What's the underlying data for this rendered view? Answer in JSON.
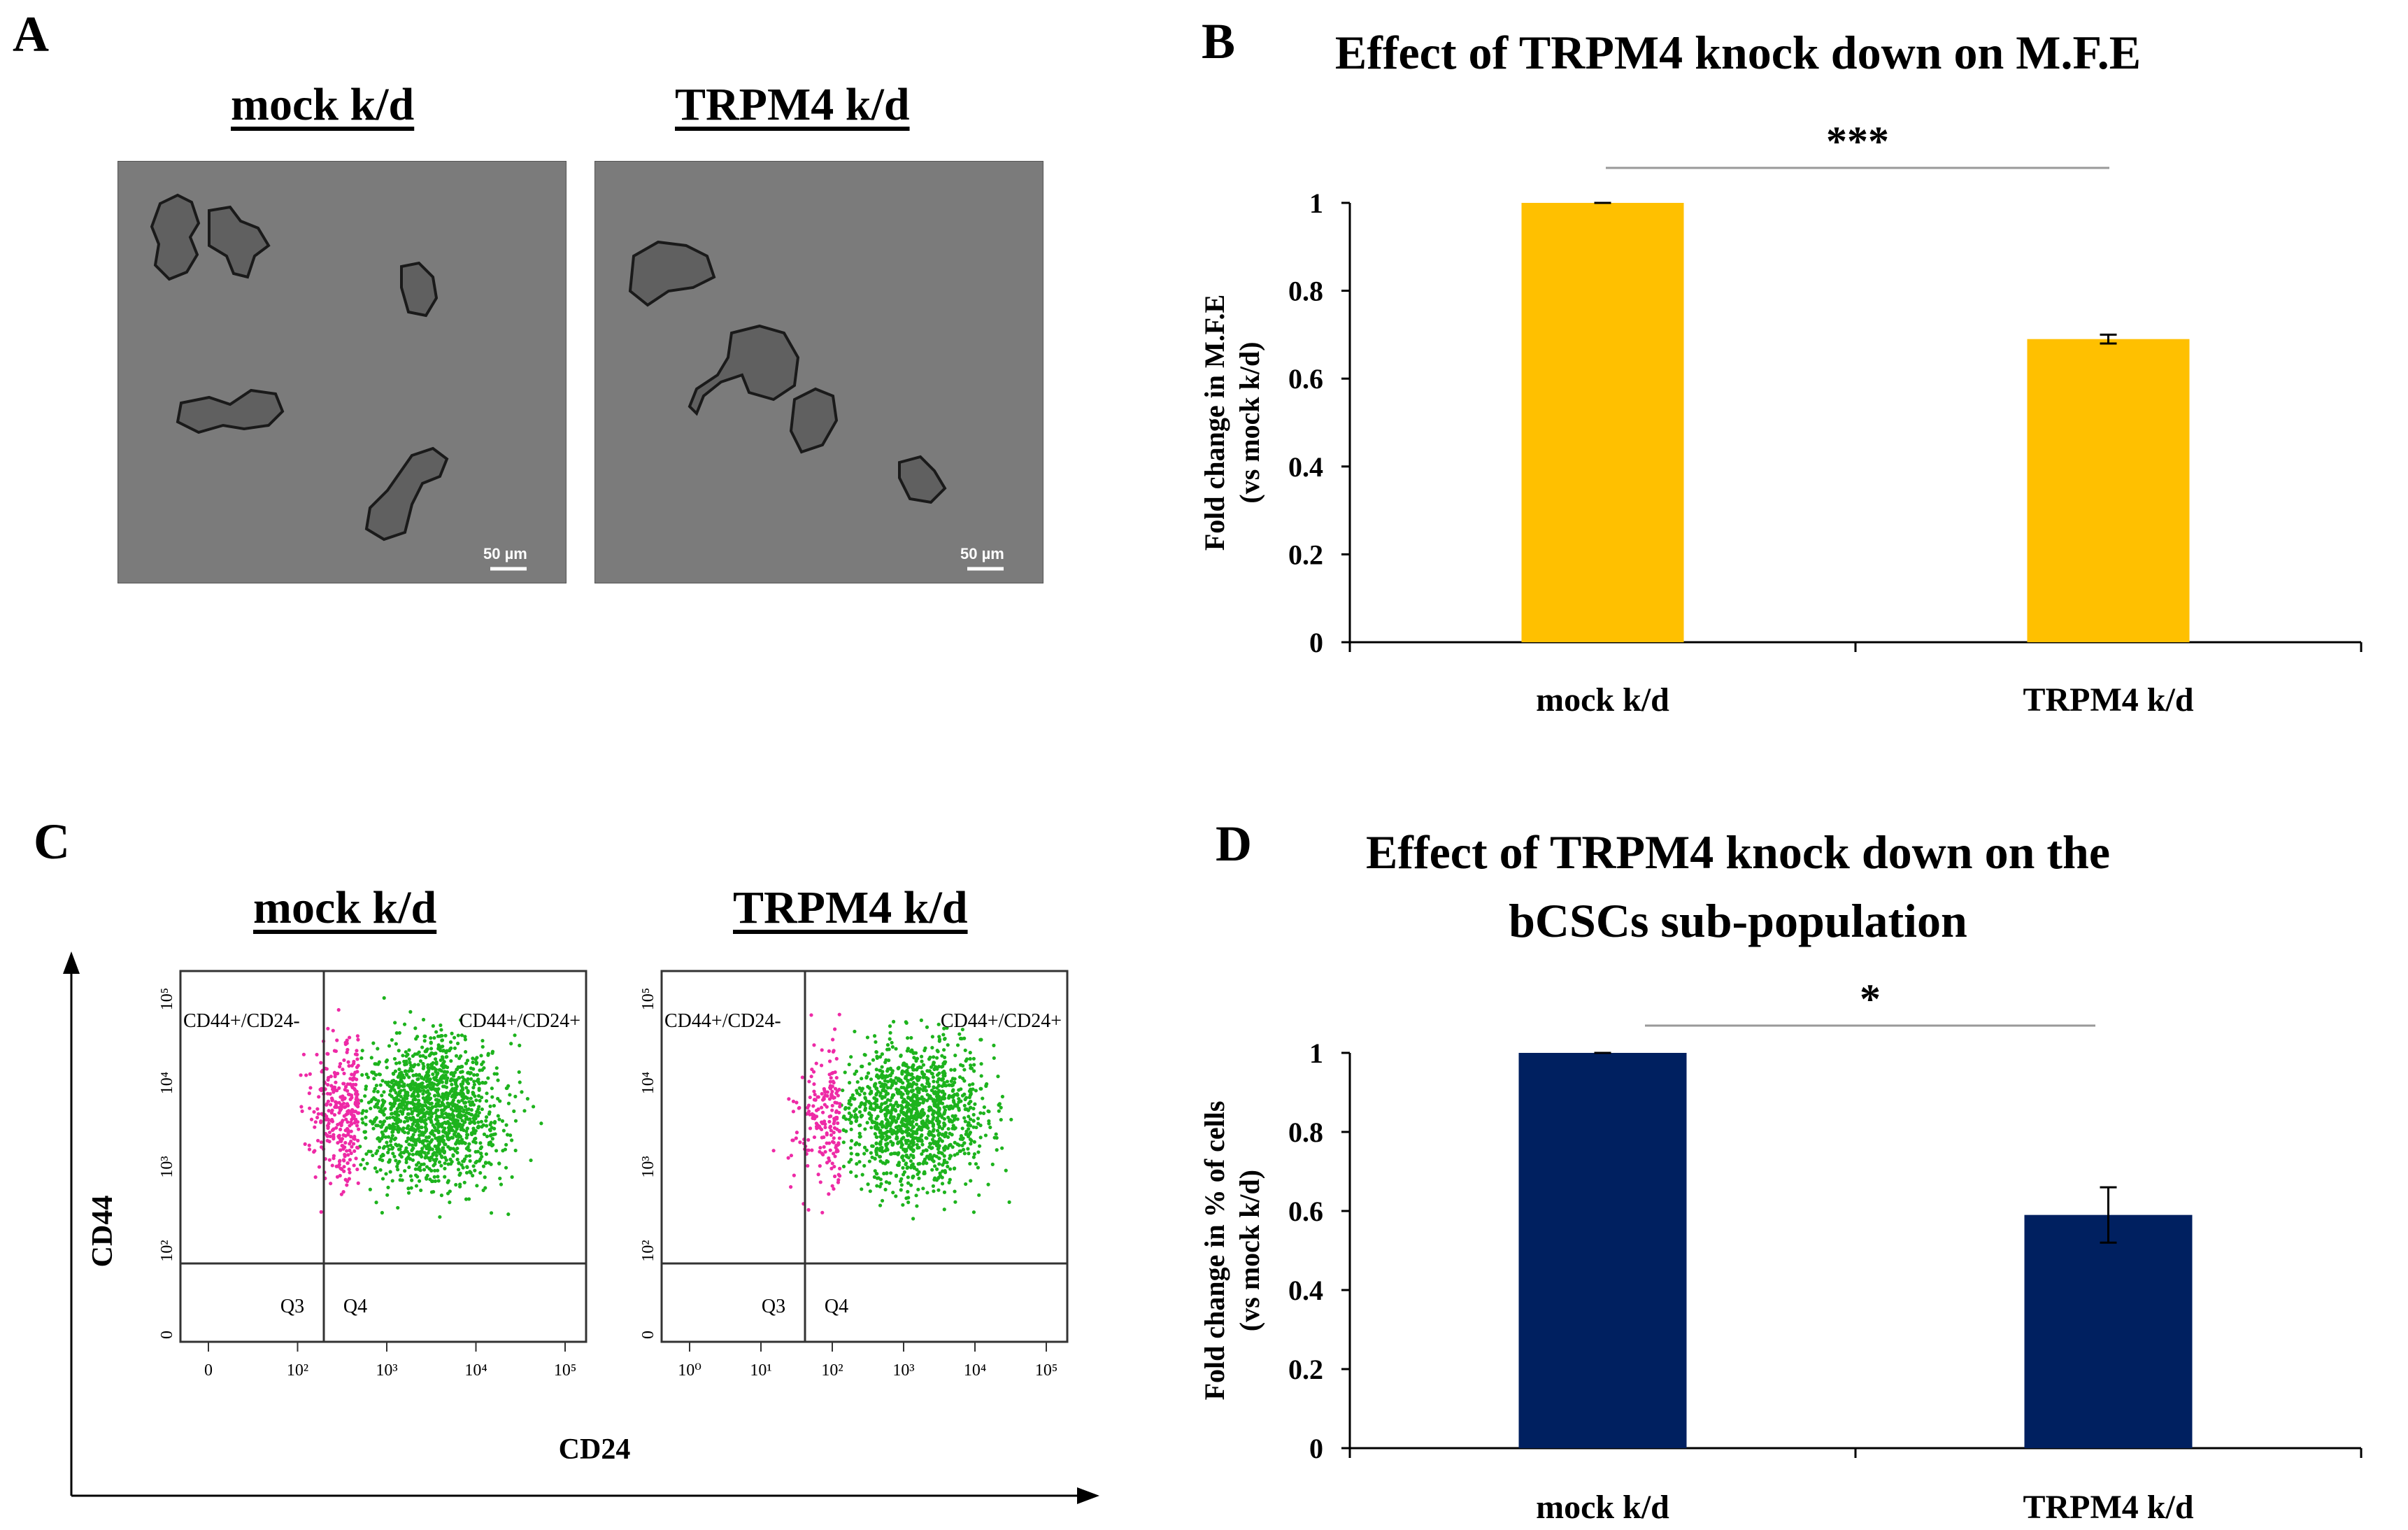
{
  "panels": {
    "a": {
      "letter": "A",
      "left_title": "mock k/d",
      "right_title": "TRPM4 k/d",
      "scale_bar": "50 µm"
    },
    "b": {
      "letter": "B"
    },
    "c": {
      "letter": "C",
      "left_title": "mock k/d",
      "right_title": "TRPM4 k/d",
      "y_axis_label": "CD44",
      "x_axis_label": "CD24",
      "quadrant_ul": "CD44+/CD24-",
      "quadrant_ur": "CD44+/CD24+",
      "quadrant_ll": "Q3",
      "quadrant_lr": "Q4",
      "y_ticks": [
        "10⁵",
        "10⁴",
        "10³",
        "10²",
        "0"
      ],
      "x_ticks_left": [
        "0",
        "10²",
        "10³",
        "10⁴",
        "10⁵"
      ],
      "x_ticks_right": [
        "10⁰",
        "10¹",
        "10²",
        "10³",
        "10⁴",
        "10⁵"
      ],
      "colors": {
        "negative": "#ee2aa6",
        "positive": "#1db31d"
      }
    },
    "d": {
      "letter": "D"
    }
  },
  "chart_data": [
    {
      "type": "bar",
      "panel": "B",
      "title": "Effect of TRPM4 knock down on M.F.E",
      "categories": [
        "mock k/d",
        "TRPM4 k/d"
      ],
      "values": [
        1.0,
        0.69
      ],
      "errors": [
        0.0,
        0.01
      ],
      "ylabel_line1": "Fold change in M.F.E",
      "ylabel_line2": "(vs mock k/d)",
      "ylim": [
        0,
        1
      ],
      "yticks": [
        0,
        0.2,
        0.4,
        0.6,
        0.8,
        1
      ],
      "ytick_labels": [
        "0",
        "0.2",
        "0.4",
        "0.6",
        "0.8",
        "1"
      ],
      "significance": "***",
      "color": "#ffc000"
    },
    {
      "type": "bar",
      "panel": "D",
      "title_line1": "Effect of TRPM4 knock down on the",
      "title_line2": "bCSCs sub-population",
      "categories": [
        "mock k/d",
        "TRPM4 k/d"
      ],
      "values": [
        1.0,
        0.59
      ],
      "errors": [
        0.0,
        0.07
      ],
      "ylabel_line1": "Fold change in % of cells",
      "ylabel_line2": "(vs mock k/d)",
      "ylim": [
        0,
        1
      ],
      "yticks": [
        0,
        0.2,
        0.4,
        0.6,
        0.8,
        1
      ],
      "ytick_labels": [
        "0",
        "0.2",
        "0.4",
        "0.6",
        "0.8",
        "1"
      ],
      "significance": "*",
      "color": "#002060"
    }
  ]
}
